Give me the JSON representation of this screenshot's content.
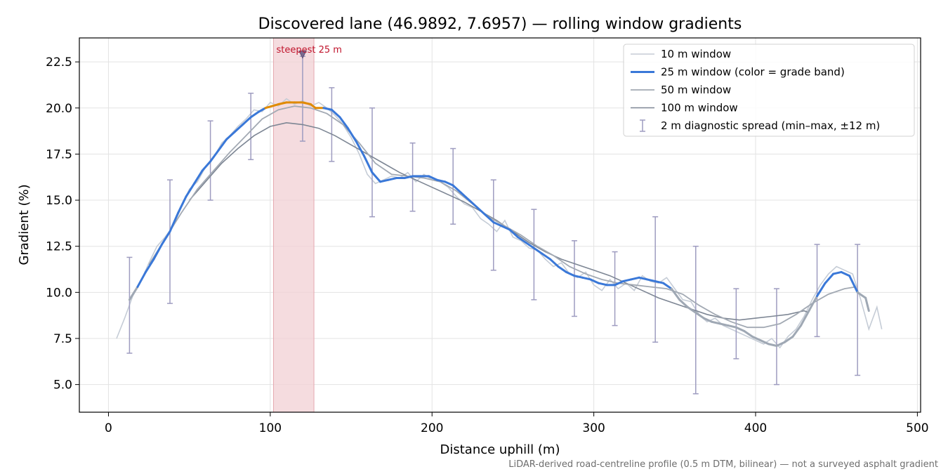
{
  "chart_data": {
    "type": "line",
    "title": "Discovered lane (46.9892, 7.6957) — rolling window gradients",
    "xlabel": "Distance uphill (m)",
    "ylabel": "Gradient (%)",
    "xlim": [
      -18,
      502
    ],
    "ylim": [
      3.5,
      23.8
    ],
    "xticks": [
      0,
      100,
      200,
      300,
      400,
      500
    ],
    "yticks": [
      5.0,
      7.5,
      10.0,
      12.5,
      15.0,
      17.5,
      20.0,
      22.5
    ],
    "grid": true,
    "legend_position": "top-right",
    "footnote": "LiDAR-derived road-centreline profile (0.5 m DTM, bilinear) — not a surveyed asphalt gradient",
    "highlight": {
      "label": "steepest 25 m",
      "x_range": [
        102,
        127
      ],
      "marker": {
        "x": 120,
        "y": 22.9
      }
    },
    "colors": {
      "w10": "#c5ccd6",
      "w25": "#3a78d8",
      "w25_steep": "#e08a00",
      "w25_low": "#9fa8b4",
      "w50": "#a2a9b3",
      "w100": "#7d8694",
      "errorbar": "#9e9cc0",
      "highlight": "#f2d0d4"
    },
    "series": [
      {
        "name": "10 m window",
        "x": [
          5,
          10,
          15,
          20,
          25,
          30,
          35,
          40,
          45,
          50,
          55,
          60,
          65,
          70,
          75,
          80,
          85,
          90,
          95,
          100,
          105,
          110,
          115,
          120,
          125,
          130,
          135,
          140,
          145,
          150,
          155,
          160,
          165,
          170,
          175,
          180,
          185,
          190,
          195,
          200,
          205,
          210,
          215,
          220,
          225,
          230,
          235,
          240,
          245,
          250,
          255,
          260,
          265,
          270,
          275,
          280,
          285,
          290,
          295,
          300,
          305,
          310,
          315,
          320,
          325,
          330,
          335,
          340,
          345,
          350,
          355,
          360,
          365,
          370,
          375,
          380,
          385,
          390,
          395,
          400,
          405,
          410,
          415,
          420,
          425,
          430,
          435,
          440,
          445,
          450,
          455,
          460,
          465,
          470,
          475,
          478
        ],
        "values": [
          7.5,
          8.6,
          9.8,
          10.6,
          11.6,
          12.5,
          13.0,
          13.6,
          14.6,
          15.6,
          16.0,
          16.8,
          17.3,
          18.1,
          18.5,
          19.0,
          19.4,
          19.9,
          19.8,
          20.3,
          20.1,
          20.5,
          20.2,
          20.4,
          20.1,
          20.3,
          20.0,
          19.6,
          19.1,
          18.4,
          17.5,
          16.4,
          15.9,
          16.1,
          16.3,
          16.2,
          16.5,
          16.0,
          16.4,
          16.1,
          16.0,
          15.7,
          15.2,
          14.8,
          14.6,
          14.0,
          13.7,
          13.3,
          13.9,
          13.0,
          12.8,
          12.4,
          12.3,
          11.8,
          11.4,
          11.6,
          11.0,
          10.8,
          11.1,
          10.4,
          10.1,
          10.7,
          10.2,
          10.5,
          10.1,
          10.9,
          10.6,
          10.5,
          10.8,
          10.2,
          9.6,
          9.5,
          8.8,
          8.4,
          8.6,
          8.2,
          8.0,
          7.8,
          7.6,
          7.4,
          7.2,
          7.5,
          7.0,
          7.6,
          8.0,
          8.7,
          9.6,
          10.4,
          11.0,
          11.4,
          11.2,
          11.0,
          9.6,
          8.0,
          9.2,
          8.0
        ]
      },
      {
        "name": "25 m window (color = grade band)",
        "x": [
          13,
          18,
          23,
          28,
          33,
          38,
          43,
          48,
          53,
          58,
          63,
          68,
          73,
          78,
          83,
          88,
          93,
          97,
          101,
          105,
          110,
          115,
          120,
          125,
          128,
          133,
          138,
          143,
          148,
          153,
          158,
          163,
          168,
          173,
          178,
          183,
          188,
          193,
          198,
          203,
          208,
          213,
          218,
          223,
          228,
          233,
          238,
          243,
          248,
          253,
          258,
          263,
          268,
          273,
          278,
          283,
          288,
          293,
          298,
          303,
          308,
          313,
          318,
          323,
          328,
          333,
          338,
          343,
          348,
          353,
          358,
          363,
          368,
          373,
          378,
          383,
          388,
          393,
          398,
          403,
          408,
          413,
          418,
          423,
          428,
          433,
          438,
          443,
          448,
          453,
          458,
          463,
          468,
          470
        ],
        "values": [
          9.6,
          10.3,
          11.1,
          11.8,
          12.6,
          13.3,
          14.3,
          15.2,
          15.9,
          16.6,
          17.1,
          17.7,
          18.3,
          18.7,
          19.1,
          19.5,
          19.8,
          20.0,
          20.1,
          20.2,
          20.3,
          20.3,
          20.3,
          20.2,
          20.0,
          20.0,
          19.9,
          19.5,
          18.9,
          18.2,
          17.4,
          16.5,
          16.0,
          16.1,
          16.2,
          16.2,
          16.3,
          16.3,
          16.3,
          16.1,
          16.0,
          15.8,
          15.4,
          15.0,
          14.6,
          14.2,
          13.8,
          13.6,
          13.4,
          13.0,
          12.7,
          12.4,
          12.1,
          11.8,
          11.4,
          11.1,
          10.9,
          10.8,
          10.7,
          10.5,
          10.4,
          10.4,
          10.6,
          10.7,
          10.8,
          10.7,
          10.6,
          10.5,
          10.2,
          9.6,
          9.2,
          8.9,
          8.6,
          8.4,
          8.3,
          8.2,
          8.1,
          7.9,
          7.6,
          7.4,
          7.2,
          7.1,
          7.3,
          7.6,
          8.2,
          9.0,
          9.8,
          10.5,
          11.0,
          11.1,
          10.9,
          10.0,
          9.7,
          9.0
        ]
      },
      {
        "name": "50 m window",
        "x": [
          25,
          35,
          45,
          55,
          65,
          75,
          85,
          95,
          105,
          115,
          125,
          135,
          145,
          155,
          165,
          175,
          185,
          195,
          205,
          215,
          225,
          235,
          245,
          255,
          265,
          275,
          285,
          295,
          305,
          315,
          325,
          335,
          345,
          355,
          365,
          375,
          385,
          395,
          405,
          415,
          425,
          435,
          445,
          455,
          462
        ],
        "values": [
          11.5,
          12.9,
          14.3,
          15.6,
          16.6,
          17.6,
          18.5,
          19.4,
          19.9,
          20.1,
          20.0,
          19.7,
          19.1,
          18.1,
          17.0,
          16.4,
          16.3,
          16.2,
          16.0,
          15.5,
          14.8,
          14.1,
          13.6,
          13.1,
          12.5,
          12.0,
          11.4,
          11.0,
          10.7,
          10.5,
          10.4,
          10.3,
          10.2,
          9.9,
          9.3,
          8.8,
          8.4,
          8.1,
          8.1,
          8.3,
          8.8,
          9.4,
          9.9,
          10.2,
          10.3
        ]
      },
      {
        "name": "100 m window",
        "x": [
          50,
          60,
          70,
          80,
          90,
          100,
          110,
          120,
          130,
          140,
          150,
          160,
          170,
          180,
          190,
          200,
          210,
          220,
          230,
          240,
          250,
          260,
          270,
          280,
          290,
          300,
          310,
          320,
          330,
          340,
          350,
          360,
          370,
          380,
          390,
          400,
          410,
          420,
          430,
          433
        ],
        "values": [
          15.0,
          16.0,
          17.0,
          17.8,
          18.5,
          19.0,
          19.2,
          19.1,
          18.9,
          18.5,
          18.0,
          17.5,
          17.0,
          16.5,
          16.1,
          15.7,
          15.3,
          14.9,
          14.4,
          13.9,
          13.3,
          12.7,
          12.2,
          11.8,
          11.5,
          11.2,
          10.9,
          10.5,
          10.1,
          9.7,
          9.4,
          9.1,
          8.8,
          8.6,
          8.5,
          8.6,
          8.7,
          8.8,
          9.0,
          8.9
        ]
      }
    ],
    "errorbars": {
      "name": "2 m diagnostic spread (min–max, ±12 m)",
      "x": [
        13,
        38,
        63,
        88,
        120,
        138,
        163,
        188,
        213,
        238,
        263,
        288,
        313,
        338,
        363,
        388,
        413,
        438,
        463
      ],
      "min": [
        6.7,
        9.4,
        15.0,
        17.2,
        18.2,
        17.1,
        14.1,
        14.4,
        13.7,
        11.2,
        9.6,
        8.7,
        8.2,
        7.3,
        4.5,
        6.4,
        5.0,
        7.6,
        5.5
      ],
      "max": [
        11.9,
        16.1,
        19.3,
        20.8,
        22.8,
        21.1,
        20.0,
        18.1,
        17.8,
        16.1,
        14.5,
        12.8,
        12.2,
        14.1,
        12.5,
        10.2,
        10.2,
        12.6,
        12.6
      ]
    }
  }
}
